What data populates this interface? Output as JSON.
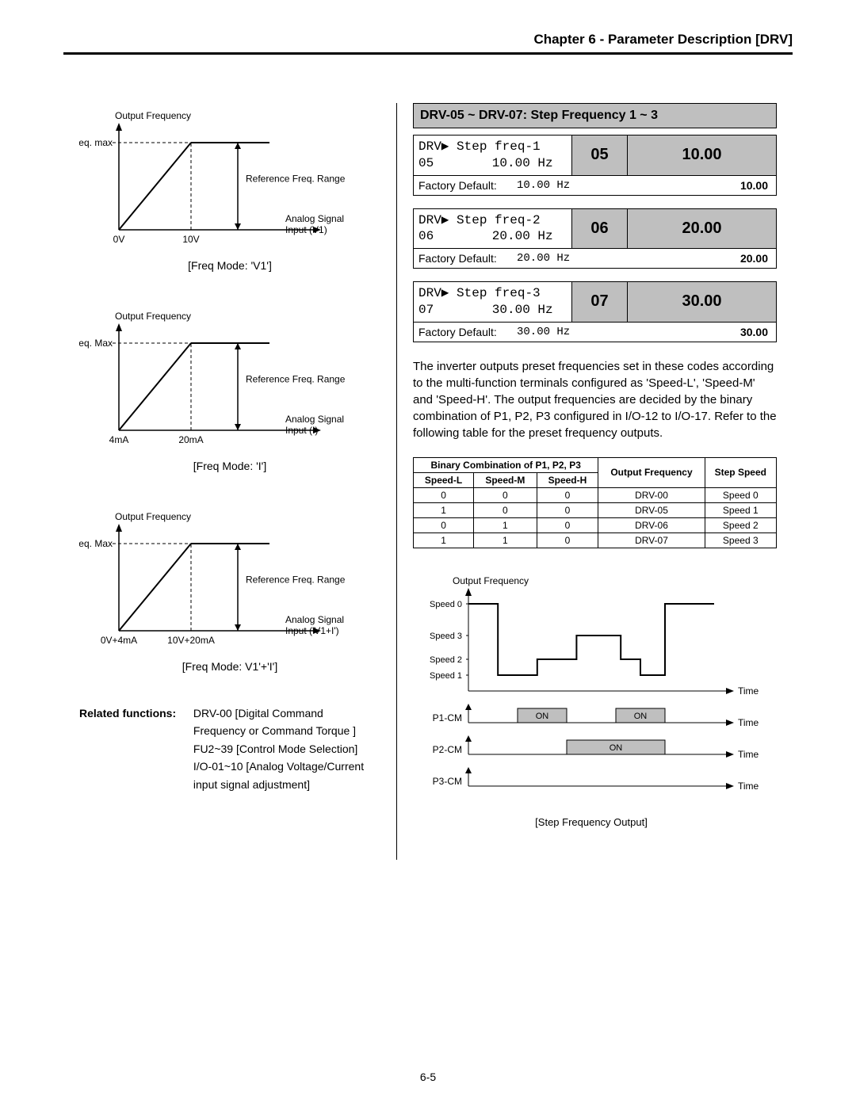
{
  "header": {
    "title": "Chapter 6 - Parameter Description [DRV]"
  },
  "footer": {
    "page": "6-5"
  },
  "left": {
    "graphs": [
      {
        "y_axis_label": "Output Frequency",
        "y_max_label": "Freq. max",
        "x_tick_left": "0V",
        "x_tick_right": "10V",
        "ref_label": "Reference Freq. Range",
        "signal_label_1": "Analog Signal",
        "signal_label_2": "Input (V1)",
        "caption": "[Freq Mode: 'V1']"
      },
      {
        "y_axis_label": "Output Frequency",
        "y_max_label": "Freq. Max",
        "x_tick_left": "4mA",
        "x_tick_right": "20mA",
        "ref_label": "Reference Freq. Range",
        "signal_label_1": "Analog Signal",
        "signal_label_2": "Input (I)",
        "caption": "[Freq Mode: 'I']"
      },
      {
        "y_axis_label": "Output Frequency",
        "y_max_label": "Freq. Max",
        "x_tick_left": "0V+4mA",
        "x_tick_right": "10V+20mA",
        "ref_label": "Reference Freq. Range",
        "signal_label_1": "Analog Signal",
        "signal_label_2": "Input ('V1+I')",
        "caption": "[Freq Mode: V1'+'I']"
      }
    ],
    "related": {
      "label": "Related functions:",
      "lines": [
        "DRV-00 [Digital Command Frequency or Command Torque ]",
        "FU2~39 [Control Mode Selection]",
        "I/O-01~10 [Analog Voltage/Current input signal adjustment]"
      ]
    }
  },
  "right": {
    "section_title": "DRV-05 ~ DRV-07: Step Frequency 1 ~ 3",
    "params": [
      {
        "lcd_line1": "DRV▶ Step freq-1",
        "lcd_line2_left": "05",
        "lcd_line2_right": "10.00 Hz",
        "code": "05",
        "value": "10.00",
        "default_label": "Factory Default:",
        "default_value": "10.00 Hz",
        "default_bold": "10.00"
      },
      {
        "lcd_line1": "DRV▶ Step freq-2",
        "lcd_line2_left": "06",
        "lcd_line2_right": "20.00 Hz",
        "code": "06",
        "value": "20.00",
        "default_label": "Factory Default:",
        "default_value": "20.00 Hz",
        "default_bold": "20.00"
      },
      {
        "lcd_line1": "DRV▶ Step freq-3",
        "lcd_line2_left": "07",
        "lcd_line2_right": "30.00 Hz",
        "code": "07",
        "value": "30.00",
        "default_label": "Factory Default:",
        "default_value": "30.00 Hz",
        "default_bold": "30.00"
      }
    ],
    "body_text": "The inverter outputs preset frequencies set in these codes according to the multi-function terminals configured as 'Speed-L', 'Speed-M' and 'Speed-H'. The output frequencies are decided by the binary combination of P1, P2, P3 configured in I/O-12 to I/O-17. Refer to the following table for the preset frequency outputs.",
    "table": {
      "header_group": "Binary Combination of P1, P2, P3",
      "col1": "Speed-L",
      "col2": "Speed-M",
      "col3": "Speed-H",
      "col4": "Output Frequency",
      "col5": "Step Speed",
      "rows": [
        [
          "0",
          "0",
          "0",
          "DRV-00",
          "Speed 0"
        ],
        [
          "1",
          "0",
          "0",
          "DRV-05",
          "Speed 1"
        ],
        [
          "0",
          "1",
          "0",
          "DRV-06",
          "Speed 2"
        ],
        [
          "1",
          "1",
          "0",
          "DRV-07",
          "Speed 3"
        ]
      ]
    },
    "timing": {
      "y_title": "Output Frequency",
      "levels": [
        "Speed 0",
        "Speed 3",
        "Speed 2",
        "Speed 1"
      ],
      "rails": [
        {
          "label": "P1-CM",
          "on_segments": [
            [
              0.2,
              0.4
            ],
            [
              0.6,
              0.8
            ]
          ]
        },
        {
          "label": "P2-CM",
          "on_segments": [
            [
              0.4,
              0.8
            ]
          ]
        },
        {
          "label": "P3-CM",
          "on_segments": []
        }
      ],
      "time_label": "Time",
      "on_label": "ON",
      "caption": "[Step Frequency Output]",
      "colors": {
        "on_fill": "#bfbfbf",
        "line": "#000"
      }
    }
  },
  "chart_style": {
    "line_color": "#000",
    "line_width": 2,
    "arrow_size": 6,
    "dash": "4,3",
    "font_size_small": 12,
    "font_size_med": 14
  }
}
